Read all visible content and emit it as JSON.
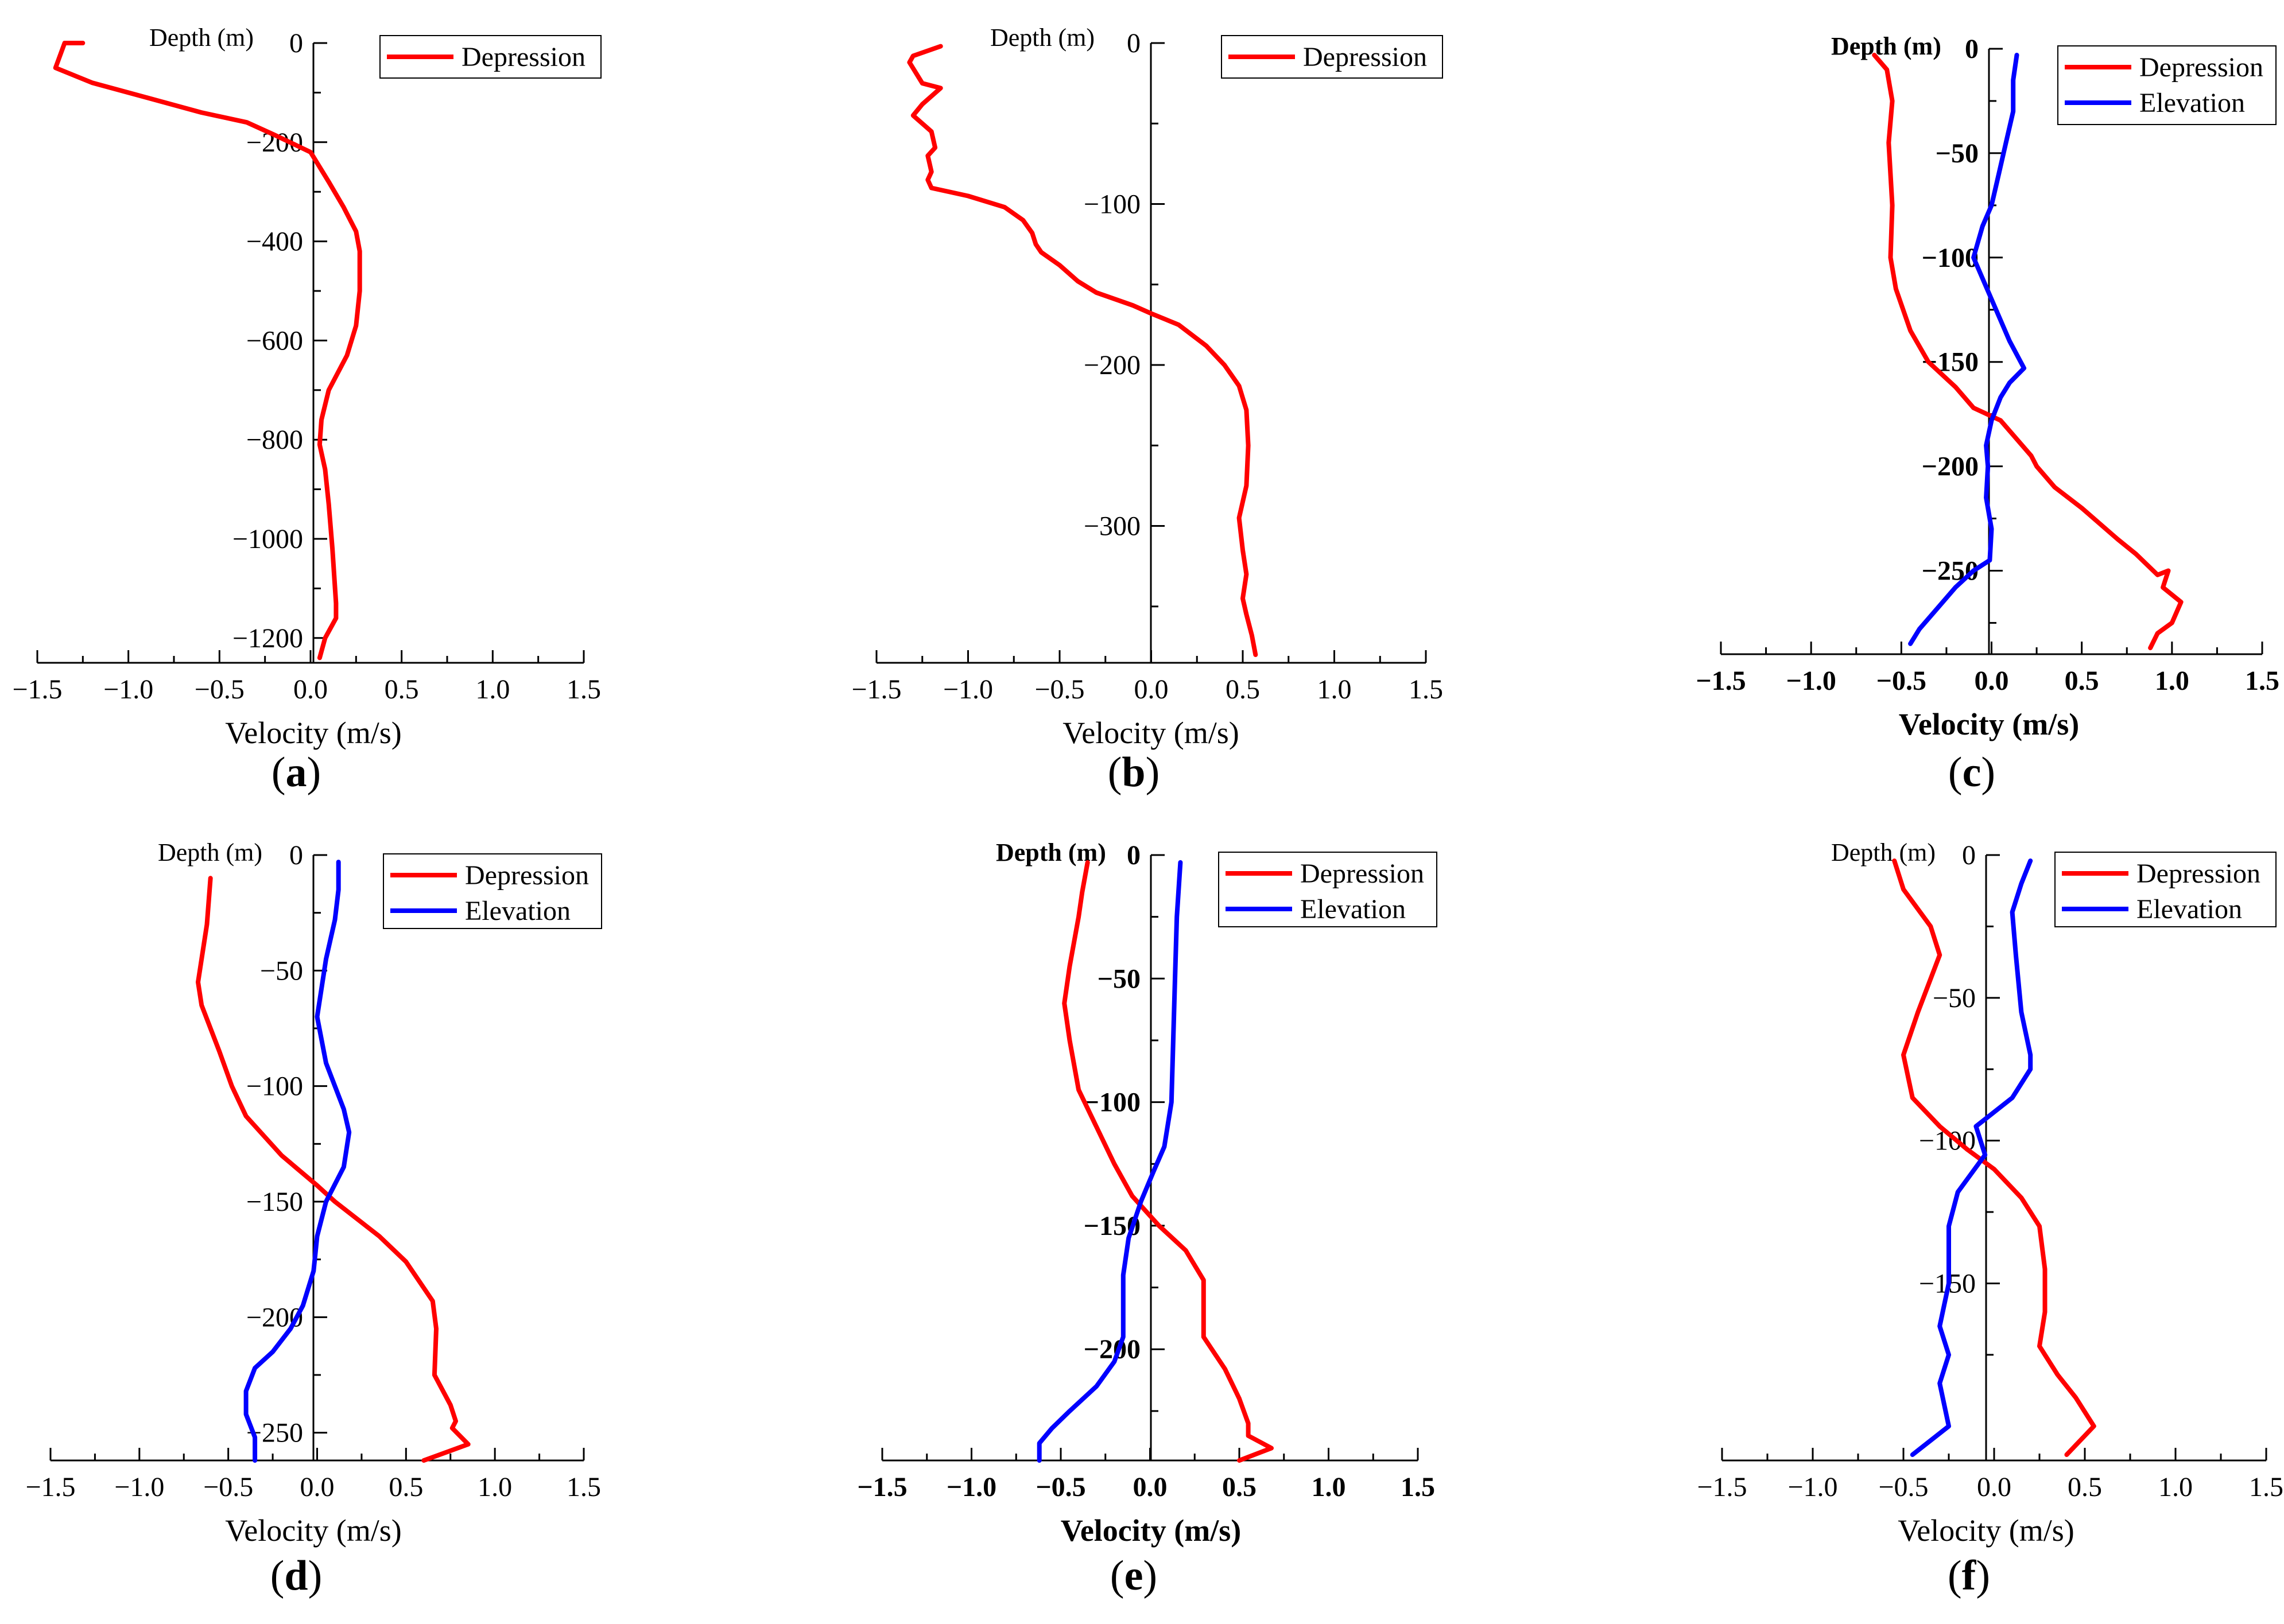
{
  "figure": {
    "colors": {
      "Depression": "#ff0000",
      "Elevation": "#0000ff",
      "axis": "#000000"
    }
  },
  "chart_data": [
    {
      "id": "a",
      "type": "line",
      "panel_label": "a",
      "ylabel": "Depth (m)",
      "xlabel": "Velocity (m/s)",
      "xlim": [
        -1.5,
        1.5
      ],
      "ylim": [
        -1250,
        0
      ],
      "xticks": [
        -1.5,
        -1.0,
        -0.5,
        0.0,
        0.5,
        1.0,
        1.5
      ],
      "yticks": [
        0,
        -200,
        -400,
        -600,
        -800,
        -1000,
        -1200
      ],
      "bold_labels": false,
      "legend": "top-right",
      "series": [
        {
          "name": "Depression",
          "points": [
            [
              -1.25,
              0
            ],
            [
              -1.35,
              0
            ],
            [
              -1.4,
              -50
            ],
            [
              -1.2,
              -80
            ],
            [
              -0.9,
              -110
            ],
            [
              -0.6,
              -140
            ],
            [
              -0.35,
              -160
            ],
            [
              -0.2,
              -185
            ],
            [
              0,
              -220
            ],
            [
              0.1,
              -280
            ],
            [
              0.18,
              -330
            ],
            [
              0.25,
              -380
            ],
            [
              0.27,
              -420
            ],
            [
              0.27,
              -500
            ],
            [
              0.25,
              -570
            ],
            [
              0.2,
              -630
            ],
            [
              0.1,
              -700
            ],
            [
              0.06,
              -760
            ],
            [
              0.05,
              -810
            ],
            [
              0.08,
              -860
            ],
            [
              0.1,
              -930
            ],
            [
              0.12,
              -1020
            ],
            [
              0.14,
              -1130
            ],
            [
              0.14,
              -1160
            ],
            [
              0.08,
              -1200
            ],
            [
              0.05,
              -1240
            ]
          ]
        }
      ]
    },
    {
      "id": "b",
      "type": "line",
      "panel_label": "b",
      "ylabel": "Depth (m)",
      "xlabel": "Velocity (m/s)",
      "xlim": [
        -1.5,
        1.5
      ],
      "ylim": [
        -385,
        0
      ],
      "xticks": [
        -1.5,
        -1.0,
        -0.5,
        0.0,
        0.5,
        1.0,
        1.5
      ],
      "yticks": [
        0,
        -100,
        -200,
        -300
      ],
      "bold_labels": false,
      "legend": "top-right",
      "series": [
        {
          "name": "Depression",
          "points": [
            [
              -1.15,
              -2
            ],
            [
              -1.3,
              -8
            ],
            [
              -1.32,
              -12
            ],
            [
              -1.25,
              -25
            ],
            [
              -1.15,
              -28
            ],
            [
              -1.25,
              -38
            ],
            [
              -1.3,
              -45
            ],
            [
              -1.2,
              -55
            ],
            [
              -1.18,
              -65
            ],
            [
              -1.22,
              -70
            ],
            [
              -1.2,
              -80
            ],
            [
              -1.22,
              -85
            ],
            [
              -1.2,
              -90
            ],
            [
              -1.0,
              -95
            ],
            [
              -0.8,
              -102
            ],
            [
              -0.7,
              -110
            ],
            [
              -0.65,
              -118
            ],
            [
              -0.63,
              -125
            ],
            [
              -0.6,
              -130
            ],
            [
              -0.5,
              -138
            ],
            [
              -0.4,
              -148
            ],
            [
              -0.3,
              -155
            ],
            [
              -0.1,
              -163
            ],
            [
              0,
              -168
            ],
            [
              0.15,
              -175
            ],
            [
              0.3,
              -188
            ],
            [
              0.4,
              -200
            ],
            [
              0.48,
              -213
            ],
            [
              0.52,
              -228
            ],
            [
              0.53,
              -250
            ],
            [
              0.52,
              -275
            ],
            [
              0.48,
              -295
            ],
            [
              0.5,
              -315
            ],
            [
              0.52,
              -330
            ],
            [
              0.5,
              -345
            ],
            [
              0.52,
              -355
            ],
            [
              0.55,
              -368
            ],
            [
              0.57,
              -380
            ]
          ]
        }
      ]
    },
    {
      "id": "c",
      "type": "line",
      "panel_label": "c",
      "ylabel": "Depth (m)",
      "xlabel": "Velocity (m/s)",
      "xlim": [
        -1.5,
        1.5
      ],
      "ylim": [
        -290,
        0
      ],
      "xticks": [
        -1.5,
        -1.0,
        -0.5,
        0.0,
        0.5,
        1.0,
        1.5
      ],
      "yticks": [
        0,
        -50,
        -100,
        -150,
        -200,
        -250
      ],
      "bold_labels": true,
      "legend": "top-right",
      "series": [
        {
          "name": "Depression",
          "points": [
            [
              -0.65,
              -3
            ],
            [
              -0.58,
              -10
            ],
            [
              -0.55,
              -25
            ],
            [
              -0.57,
              -45
            ],
            [
              -0.55,
              -75
            ],
            [
              -0.56,
              -100
            ],
            [
              -0.53,
              -115
            ],
            [
              -0.45,
              -135
            ],
            [
              -0.35,
              -150
            ],
            [
              -0.2,
              -162
            ],
            [
              -0.1,
              -172
            ],
            [
              0.05,
              -178
            ],
            [
              0.12,
              -185
            ],
            [
              0.22,
              -195
            ],
            [
              0.25,
              -200
            ],
            [
              0.35,
              -210
            ],
            [
              0.5,
              -220
            ],
            [
              0.7,
              -235
            ],
            [
              0.8,
              -242
            ],
            [
              0.92,
              -252
            ],
            [
              0.98,
              -250
            ],
            [
              0.95,
              -258
            ],
            [
              1.05,
              -265
            ],
            [
              1.0,
              -275
            ],
            [
              0.92,
              -280
            ],
            [
              0.88,
              -287
            ]
          ]
        },
        {
          "name": "Elevation",
          "points": [
            [
              0.14,
              -3
            ],
            [
              0.12,
              -15
            ],
            [
              0.12,
              -30
            ],
            [
              0.08,
              -45
            ],
            [
              0.04,
              -60
            ],
            [
              0.0,
              -75
            ],
            [
              -0.05,
              -85
            ],
            [
              -0.1,
              -100
            ],
            [
              -0.05,
              -110
            ],
            [
              0.05,
              -130
            ],
            [
              0.1,
              -140
            ],
            [
              0.18,
              -153
            ],
            [
              0.1,
              -160
            ],
            [
              0.05,
              -167
            ],
            [
              0.0,
              -178
            ],
            [
              -0.03,
              -190
            ],
            [
              -0.02,
              -200
            ],
            [
              -0.03,
              -215
            ],
            [
              0.0,
              -230
            ],
            [
              -0.01,
              -245
            ],
            [
              -0.1,
              -250
            ],
            [
              -0.2,
              -258
            ],
            [
              -0.3,
              -268
            ],
            [
              -0.4,
              -278
            ],
            [
              -0.45,
              -285
            ]
          ]
        }
      ]
    },
    {
      "id": "d",
      "type": "line",
      "panel_label": "d",
      "ylabel": "Depth (m)",
      "xlabel": "Velocity (m/s)",
      "xlim": [
        -1.5,
        1.5
      ],
      "ylim": [
        -262,
        0
      ],
      "xticks": [
        -1.5,
        -1.0,
        -0.5,
        0.0,
        0.5,
        1.0,
        1.5
      ],
      "yticks": [
        0,
        -50,
        -100,
        -150,
        -200,
        -250
      ],
      "bold_labels": false,
      "legend": "top-right",
      "series": [
        {
          "name": "Depression",
          "points": [
            [
              -0.6,
              -10
            ],
            [
              -0.62,
              -30
            ],
            [
              -0.65,
              -45
            ],
            [
              -0.67,
              -55
            ],
            [
              -0.65,
              -65
            ],
            [
              -0.55,
              -85
            ],
            [
              -0.48,
              -100
            ],
            [
              -0.4,
              -113
            ],
            [
              -0.2,
              -130
            ],
            [
              0,
              -143
            ],
            [
              0.1,
              -150
            ],
            [
              0.35,
              -165
            ],
            [
              0.5,
              -176
            ],
            [
              0.65,
              -193
            ],
            [
              0.67,
              -205
            ],
            [
              0.66,
              -225
            ],
            [
              0.75,
              -238
            ],
            [
              0.78,
              -245
            ],
            [
              0.76,
              -248
            ],
            [
              0.85,
              -255
            ],
            [
              0.6,
              -262
            ]
          ]
        },
        {
          "name": "Elevation",
          "points": [
            [
              0.12,
              -3
            ],
            [
              0.12,
              -15
            ],
            [
              0.1,
              -28
            ],
            [
              0.05,
              -45
            ],
            [
              0.0,
              -70
            ],
            [
              0.05,
              -90
            ],
            [
              0.15,
              -110
            ],
            [
              0.18,
              -120
            ],
            [
              0.15,
              -135
            ],
            [
              0.05,
              -150
            ],
            [
              0.0,
              -165
            ],
            [
              -0.02,
              -180
            ],
            [
              -0.08,
              -195
            ],
            [
              -0.15,
              -205
            ],
            [
              -0.25,
              -215
            ],
            [
              -0.35,
              -222
            ],
            [
              -0.4,
              -232
            ],
            [
              -0.4,
              -242
            ],
            [
              -0.35,
              -252
            ],
            [
              -0.35,
              -262
            ]
          ]
        }
      ]
    },
    {
      "id": "e",
      "type": "line",
      "panel_label": "e",
      "ylabel": "Depth (m)",
      "xlabel": "Velocity (m/s)",
      "xlim": [
        -1.5,
        1.5
      ],
      "ylim": [
        -245,
        0
      ],
      "xticks": [
        -1.5,
        -1.0,
        -0.5,
        0.0,
        0.5,
        1.0,
        1.5
      ],
      "yticks": [
        0,
        -50,
        -100,
        -150,
        -200
      ],
      "bold_labels": true,
      "legend": "top-right",
      "series": [
        {
          "name": "Depression",
          "points": [
            [
              -0.35,
              -3
            ],
            [
              -0.38,
              -15
            ],
            [
              -0.4,
              -25
            ],
            [
              -0.45,
              -45
            ],
            [
              -0.48,
              -60
            ],
            [
              -0.45,
              -75
            ],
            [
              -0.4,
              -95
            ],
            [
              -0.3,
              -110
            ],
            [
              -0.2,
              -125
            ],
            [
              -0.1,
              -138
            ],
            [
              0.05,
              -150
            ],
            [
              0.2,
              -160
            ],
            [
              0.3,
              -172
            ],
            [
              0.3,
              -195
            ],
            [
              0.42,
              -208
            ],
            [
              0.5,
              -220
            ],
            [
              0.55,
              -230
            ],
            [
              0.55,
              -235
            ],
            [
              0.68,
              -240
            ],
            [
              0.5,
              -245
            ]
          ]
        },
        {
          "name": "Elevation",
          "points": [
            [
              0.17,
              -3
            ],
            [
              0.15,
              -25
            ],
            [
              0.14,
              -50
            ],
            [
              0.13,
              -75
            ],
            [
              0.12,
              -100
            ],
            [
              0.08,
              -118
            ],
            [
              0.02,
              -128
            ],
            [
              -0.05,
              -140
            ],
            [
              -0.12,
              -155
            ],
            [
              -0.15,
              -170
            ],
            [
              -0.15,
              -195
            ],
            [
              -0.2,
              -205
            ],
            [
              -0.3,
              -215
            ],
            [
              -0.45,
              -225
            ],
            [
              -0.55,
              -232
            ],
            [
              -0.62,
              -238
            ],
            [
              -0.62,
              -245
            ]
          ]
        }
      ]
    },
    {
      "id": "f",
      "type": "line",
      "panel_label": "f",
      "ylabel": "Depth (m)",
      "xlabel": "Velocity (m/s)",
      "xlim": [
        -1.5,
        1.5
      ],
      "ylim": [
        -212,
        0
      ],
      "xticks": [
        -1.5,
        -1.0,
        -0.5,
        0.0,
        0.5,
        1.0,
        1.5
      ],
      "yticks": [
        0,
        -50,
        -100,
        -150
      ],
      "bold_labels": false,
      "legend": "top-right",
      "series": [
        {
          "name": "Depression",
          "points": [
            [
              -0.55,
              -2
            ],
            [
              -0.5,
              -12
            ],
            [
              -0.35,
              -25
            ],
            [
              -0.3,
              -35
            ],
            [
              -0.42,
              -55
            ],
            [
              -0.5,
              -70
            ],
            [
              -0.45,
              -85
            ],
            [
              -0.3,
              -95
            ],
            [
              -0.15,
              -103
            ],
            [
              0.0,
              -110
            ],
            [
              0.15,
              -120
            ],
            [
              0.25,
              -130
            ],
            [
              0.28,
              -145
            ],
            [
              0.28,
              -160
            ],
            [
              0.25,
              -172
            ],
            [
              0.35,
              -182
            ],
            [
              0.45,
              -190
            ],
            [
              0.55,
              -200
            ],
            [
              0.4,
              -210
            ]
          ]
        },
        {
          "name": "Elevation",
          "points": [
            [
              0.2,
              -2
            ],
            [
              0.15,
              -10
            ],
            [
              0.1,
              -20
            ],
            [
              0.12,
              -35
            ],
            [
              0.15,
              -55
            ],
            [
              0.2,
              -70
            ],
            [
              0.2,
              -75
            ],
            [
              0.1,
              -85
            ],
            [
              -0.1,
              -95
            ],
            [
              -0.05,
              -105
            ],
            [
              -0.2,
              -118
            ],
            [
              -0.25,
              -130
            ],
            [
              -0.25,
              -150
            ],
            [
              -0.3,
              -165
            ],
            [
              -0.25,
              -175
            ],
            [
              -0.3,
              -185
            ],
            [
              -0.25,
              -200
            ],
            [
              -0.45,
              -210
            ]
          ]
        }
      ]
    }
  ]
}
